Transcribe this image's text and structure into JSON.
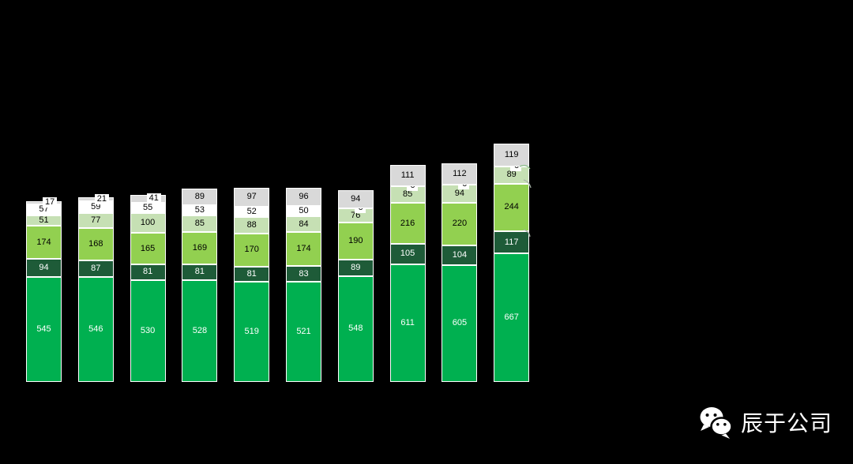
{
  "background": "#000000",
  "chart_data": {
    "type": "bar",
    "stacked": true,
    "orientation": "vertical",
    "title": "",
    "xlabel": "",
    "ylabel": "",
    "axis_visible": false,
    "legend_visible": false,
    "value_labels": true,
    "categories": [
      "",
      "",
      "",
      "",
      "",
      "",
      "",
      "",
      "",
      ""
    ],
    "series": [
      {
        "name": "bright-green",
        "color": "#00B050",
        "label_color": "#ffffff",
        "values": [
          545,
          546,
          530,
          528,
          519,
          521,
          548,
          611,
          605,
          667
        ]
      },
      {
        "name": "dark-green",
        "color": "#1E5B38",
        "label_color": "#ffffff",
        "values": [
          94,
          87,
          81,
          81,
          81,
          83,
          89,
          105,
          104,
          117
        ]
      },
      {
        "name": "medium-green",
        "color": "#92D050",
        "label_color": "#000000",
        "values": [
          174,
          168,
          165,
          169,
          170,
          174,
          190,
          216,
          220,
          244
        ]
      },
      {
        "name": "pale-green",
        "color": "#C6E0B4",
        "label_color": "#000000",
        "values": [
          51,
          77,
          100,
          85,
          88,
          84,
          76,
          85,
          94,
          89
        ]
      },
      {
        "name": "white",
        "color": "#FFFFFF",
        "label_color": "#000000",
        "values": [
          57,
          59,
          55,
          53,
          52,
          50,
          0,
          0,
          0,
          0
        ]
      },
      {
        "name": "gray",
        "color": "#D9D9D9",
        "label_color": "#000000",
        "values": [
          17,
          21,
          41,
          89,
          97,
          96,
          94,
          111,
          112,
          119
        ]
      }
    ]
  },
  "watermark": {
    "text": "辰于公司",
    "icon": "wechat-icon",
    "color": "#ffffff"
  }
}
